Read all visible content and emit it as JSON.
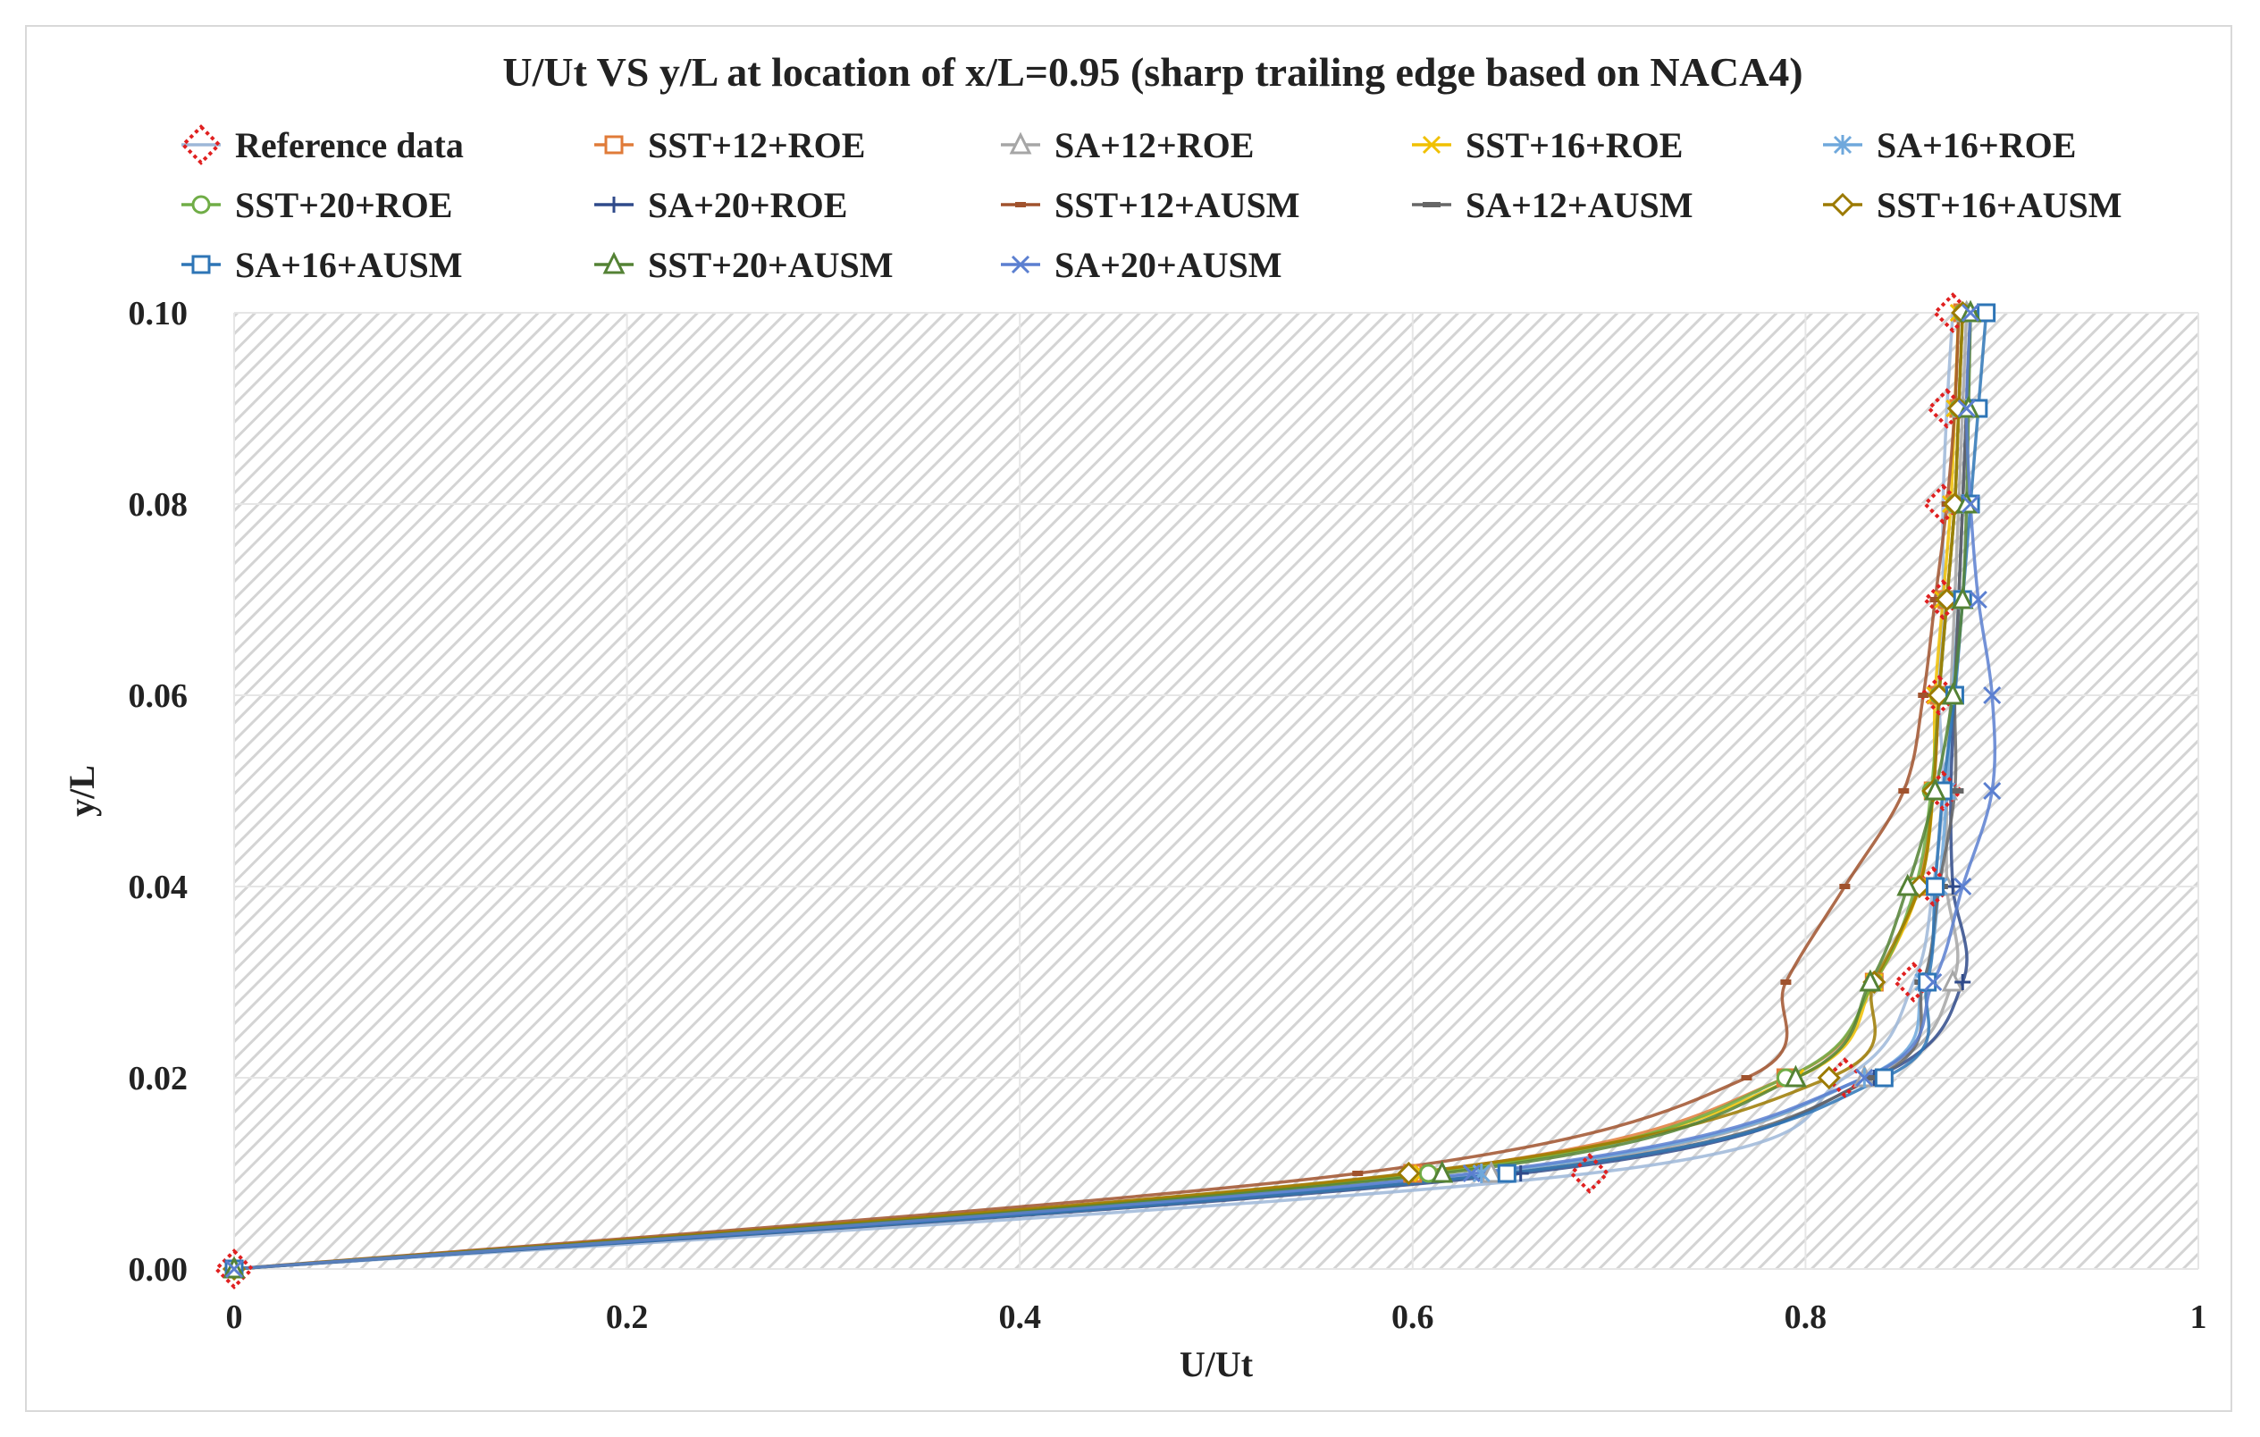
{
  "chart_data": {
    "type": "line",
    "title": "U/Ut VS y/L at location of x/L=0.95 (sharp trailing edge based on NACA4)",
    "xlabel": "U/Ut",
    "ylabel": "y/L",
    "xlim": [
      0,
      1
    ],
    "ylim": [
      0,
      0.1
    ],
    "x_ticks": [
      "0",
      "0.2",
      "0.4",
      "0.6",
      "0.8",
      "1"
    ],
    "y_ticks": [
      "0.00",
      "0.02",
      "0.04",
      "0.06",
      "0.08",
      "0.10"
    ],
    "grid": true,
    "legend_position": "top",
    "y": [
      0,
      0.01,
      0.02,
      0.03,
      0.04,
      0.05,
      0.06,
      0.07,
      0.08,
      0.09,
      0.1
    ],
    "series": [
      {
        "name": "Reference data",
        "color": "#e02020",
        "line": "#9db7d8",
        "marker": "diamond-dotted",
        "x": [
          0,
          0.69,
          0.82,
          0.855,
          0.865,
          0.87,
          0.868,
          0.87,
          0.87,
          0.872,
          0.875
        ]
      },
      {
        "name": "SST+12+ROE",
        "color": "#e07b39",
        "marker": "square",
        "x": [
          0,
          0.6,
          0.79,
          0.835,
          0.857,
          0.865,
          0.868,
          0.872,
          0.876,
          0.878,
          0.88
        ]
      },
      {
        "name": "SA+12+ROE",
        "color": "#a6a6a6",
        "marker": "triangle",
        "x": [
          0,
          0.64,
          0.83,
          0.875,
          0.872,
          0.872,
          0.874,
          0.876,
          0.878,
          0.88,
          0.882
        ]
      },
      {
        "name": "SST+16+ROE",
        "color": "#f0c000",
        "marker": "x",
        "x": [
          0,
          0.605,
          0.795,
          0.835,
          0.858,
          0.865,
          0.866,
          0.87,
          0.874,
          0.876,
          0.878
        ]
      },
      {
        "name": "SA+16+ROE",
        "color": "#6fa8dc",
        "marker": "asterisk",
        "x": [
          0,
          0.635,
          0.83,
          0.86,
          0.868,
          0.872,
          0.875,
          0.878,
          0.88,
          0.882,
          0.884
        ]
      },
      {
        "name": "SST+20+ROE",
        "color": "#70ad47",
        "marker": "circle",
        "x": [
          0,
          0.608,
          0.79,
          0.835,
          0.856,
          0.864,
          0.868,
          0.872,
          0.876,
          0.878,
          0.88
        ]
      },
      {
        "name": "SA+20+ROE",
        "color": "#2f4a8a",
        "marker": "plus",
        "x": [
          0,
          0.655,
          0.835,
          0.88,
          0.875,
          0.874,
          0.876,
          0.878,
          0.88,
          0.882,
          0.884
        ]
      },
      {
        "name": "SST+12+AUSM",
        "color": "#a0522d",
        "marker": "dash",
        "x": [
          0,
          0.572,
          0.77,
          0.79,
          0.82,
          0.85,
          0.86,
          0.866,
          0.872,
          0.876,
          0.878
        ]
      },
      {
        "name": "SA+12+AUSM",
        "color": "#666666",
        "marker": "dash-long",
        "x": [
          0,
          0.648,
          0.835,
          0.86,
          0.868,
          0.876,
          0.876,
          0.878,
          0.88,
          0.882,
          0.884
        ]
      },
      {
        "name": "SST+16+AUSM",
        "color": "#9c7a00",
        "marker": "diamond",
        "x": [
          0,
          0.598,
          0.812,
          0.835,
          0.858,
          0.865,
          0.868,
          0.872,
          0.876,
          0.878,
          0.88
        ]
      },
      {
        "name": "SA+16+AUSM",
        "color": "#2e75b6",
        "marker": "square",
        "x": [
          0,
          0.648,
          0.84,
          0.862,
          0.866,
          0.87,
          0.876,
          0.88,
          0.884,
          0.888,
          0.892
        ]
      },
      {
        "name": "SST+20+AUSM",
        "color": "#548235",
        "marker": "triangle",
        "x": [
          0,
          0.615,
          0.795,
          0.833,
          0.852,
          0.866,
          0.875,
          0.88,
          0.882,
          0.883,
          0.884
        ]
      },
      {
        "name": "SA+20+AUSM",
        "color": "#5b7fd0",
        "marker": "x",
        "x": [
          0,
          0.63,
          0.83,
          0.865,
          0.88,
          0.895,
          0.895,
          0.888,
          0.884,
          0.882,
          0.884
        ]
      }
    ]
  }
}
